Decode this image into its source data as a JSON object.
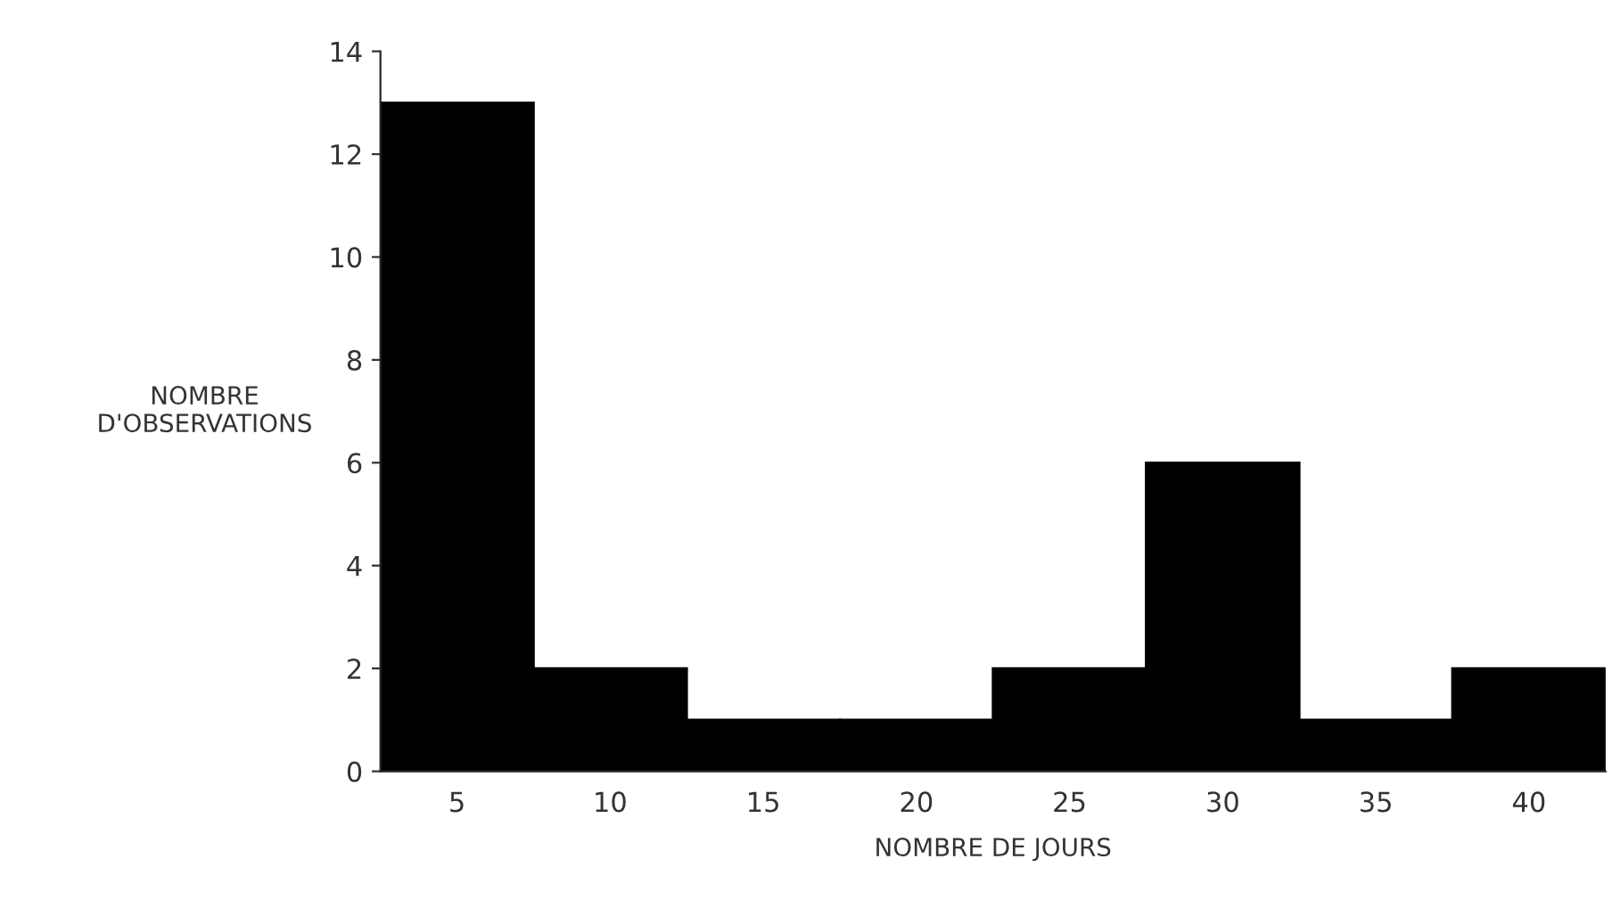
{
  "chart_data": {
    "type": "bar",
    "xlabel": "NOMBRE DE JOURS",
    "ylabel": "NOMBRE\nD'OBSERVATIONS",
    "categories": [
      "5",
      "10",
      "15",
      "20",
      "25",
      "30",
      "35",
      "40"
    ],
    "values": [
      13,
      2,
      1,
      1,
      2,
      6,
      1,
      2
    ],
    "color": "#000000",
    "ylim": [
      0,
      14
    ],
    "yticks": [
      0,
      2,
      4,
      6,
      8,
      10,
      12,
      14
    ],
    "grid": false
  }
}
